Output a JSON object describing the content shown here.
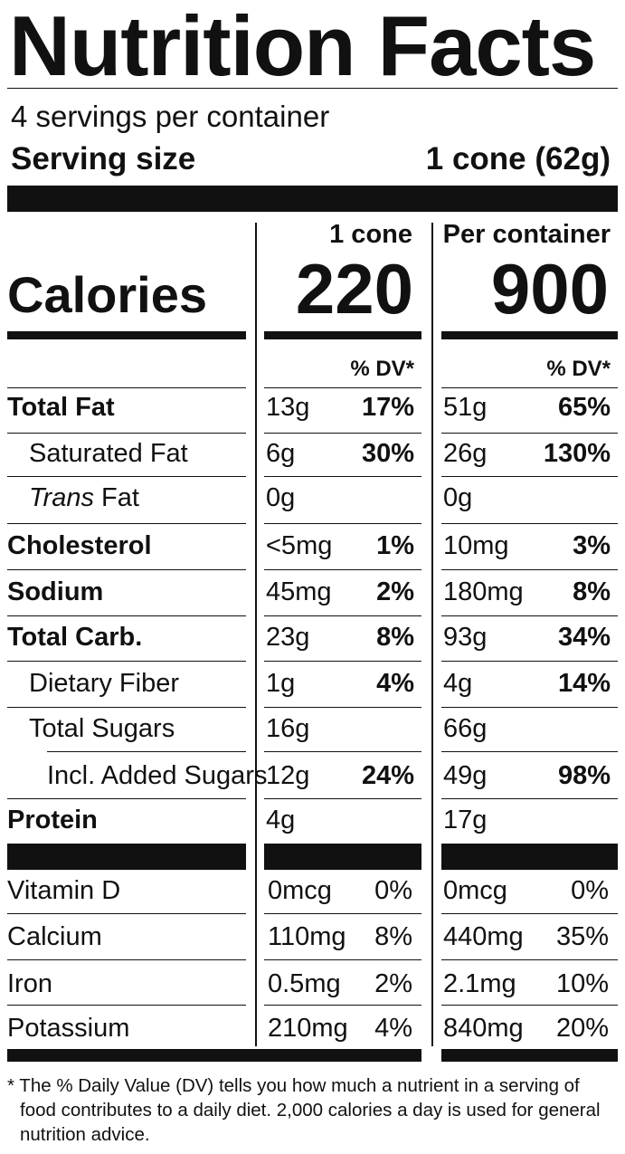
{
  "title": "Nutrition Facts",
  "servings_per_container": "4 servings per container",
  "serving_size_label": "Serving size",
  "serving_size_value": "1 cone (62g)",
  "calories_label": "Calories",
  "columns": [
    {
      "header": "1 cone",
      "calories": "220",
      "dv_label": "% DV*"
    },
    {
      "header": "Per container",
      "calories": "900",
      "dv_label": "% DV*"
    }
  ],
  "nutrients": [
    {
      "name": "Total Fat",
      "style": "bold",
      "values": [
        {
          "amount": "13g",
          "dv": "17%"
        },
        {
          "amount": "51g",
          "dv": "65%"
        }
      ]
    },
    {
      "name": "Saturated Fat",
      "style": "indent1",
      "values": [
        {
          "amount": "6g",
          "dv": "30%"
        },
        {
          "amount": "26g",
          "dv": "130%"
        }
      ]
    },
    {
      "name_italic": "Trans",
      "name": " Fat",
      "style": "indent1",
      "values": [
        {
          "amount": "0g",
          "dv": ""
        },
        {
          "amount": "0g",
          "dv": ""
        }
      ]
    },
    {
      "name": "Cholesterol",
      "style": "bold",
      "values": [
        {
          "amount": "<5mg",
          "dv": "1%"
        },
        {
          "amount": "10mg",
          "dv": "3%"
        }
      ]
    },
    {
      "name": "Sodium",
      "style": "bold",
      "values": [
        {
          "amount": "45mg",
          "dv": "2%"
        },
        {
          "amount": "180mg",
          "dv": "8%"
        }
      ]
    },
    {
      "name": "Total Carb.",
      "style": "bold",
      "values": [
        {
          "amount": "23g",
          "dv": "8%"
        },
        {
          "amount": "93g",
          "dv": "34%"
        }
      ]
    },
    {
      "name": "Dietary Fiber",
      "style": "indent1",
      "values": [
        {
          "amount": "1g",
          "dv": "4%"
        },
        {
          "amount": "4g",
          "dv": "14%"
        }
      ]
    },
    {
      "name": "Total Sugars",
      "style": "indent1",
      "values": [
        {
          "amount": "16g",
          "dv": ""
        },
        {
          "amount": "66g",
          "dv": ""
        }
      ]
    },
    {
      "name": "Incl. Added Sugars",
      "style": "indent2",
      "values": [
        {
          "amount": "12g",
          "dv": "24%"
        },
        {
          "amount": "49g",
          "dv": "98%"
        }
      ]
    },
    {
      "name": "Protein",
      "style": "bold",
      "values": [
        {
          "amount": "4g",
          "dv": ""
        },
        {
          "amount": "17g",
          "dv": ""
        }
      ]
    }
  ],
  "vitamins": [
    {
      "name": "Vitamin D",
      "values": [
        {
          "amount": "0mcg",
          "dv": "0%"
        },
        {
          "amount": "0mcg",
          "dv": "0%"
        }
      ]
    },
    {
      "name": "Calcium",
      "values": [
        {
          "amount": "110mg",
          "dv": "8%"
        },
        {
          "amount": "440mg",
          "dv": "35%"
        }
      ]
    },
    {
      "name": "Iron",
      "values": [
        {
          "amount": "0.5mg",
          "dv": "2%"
        },
        {
          "amount": "2.1mg",
          "dv": "10%"
        }
      ]
    },
    {
      "name": "Potassium",
      "values": [
        {
          "amount": "210mg",
          "dv": "4%"
        },
        {
          "amount": "840mg",
          "dv": "20%"
        }
      ]
    }
  ],
  "footnote": {
    "line1": "* The % Daily Value (DV) tells you how much a nutrient in a serving of",
    "line2": "food contributes to a daily diet. 2,000 calories a day is used for general",
    "line3": "nutrition advice."
  },
  "colors": {
    "ink": "#111111",
    "background": "#ffffff"
  }
}
